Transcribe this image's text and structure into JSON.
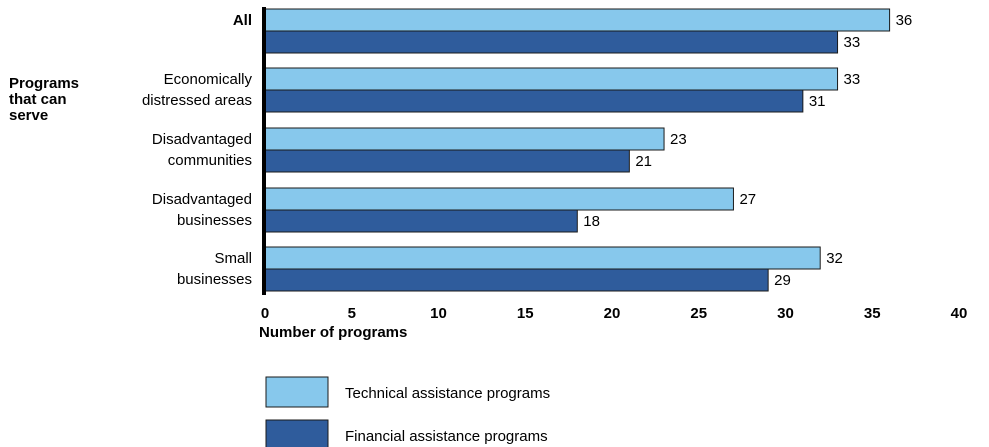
{
  "chart_data": {
    "type": "bar",
    "orientation": "horizontal",
    "group_label": [
      "Programs",
      "that can",
      "serve"
    ],
    "categories": [
      [
        "All"
      ],
      [
        "Economically",
        "distressed areas"
      ],
      [
        "Disadvantaged",
        "communities"
      ],
      [
        "Disadvantaged",
        "businesses"
      ],
      [
        "Small",
        "businesses"
      ]
    ],
    "series": [
      {
        "name": "Technical assistance programs",
        "color": "#87C8EC",
        "values": [
          36,
          33,
          23,
          27,
          32
        ]
      },
      {
        "name": "Financial assistance programs",
        "color": "#2F5C9C",
        "values": [
          33,
          31,
          21,
          18,
          29
        ]
      }
    ],
    "xlabel": "Number of programs",
    "xlim": [
      0,
      40
    ],
    "xticks": [
      "0",
      "5",
      "10",
      "15",
      "20",
      "25",
      "30",
      "35",
      "40"
    ],
    "grid": false,
    "legend_position": "bottom"
  }
}
